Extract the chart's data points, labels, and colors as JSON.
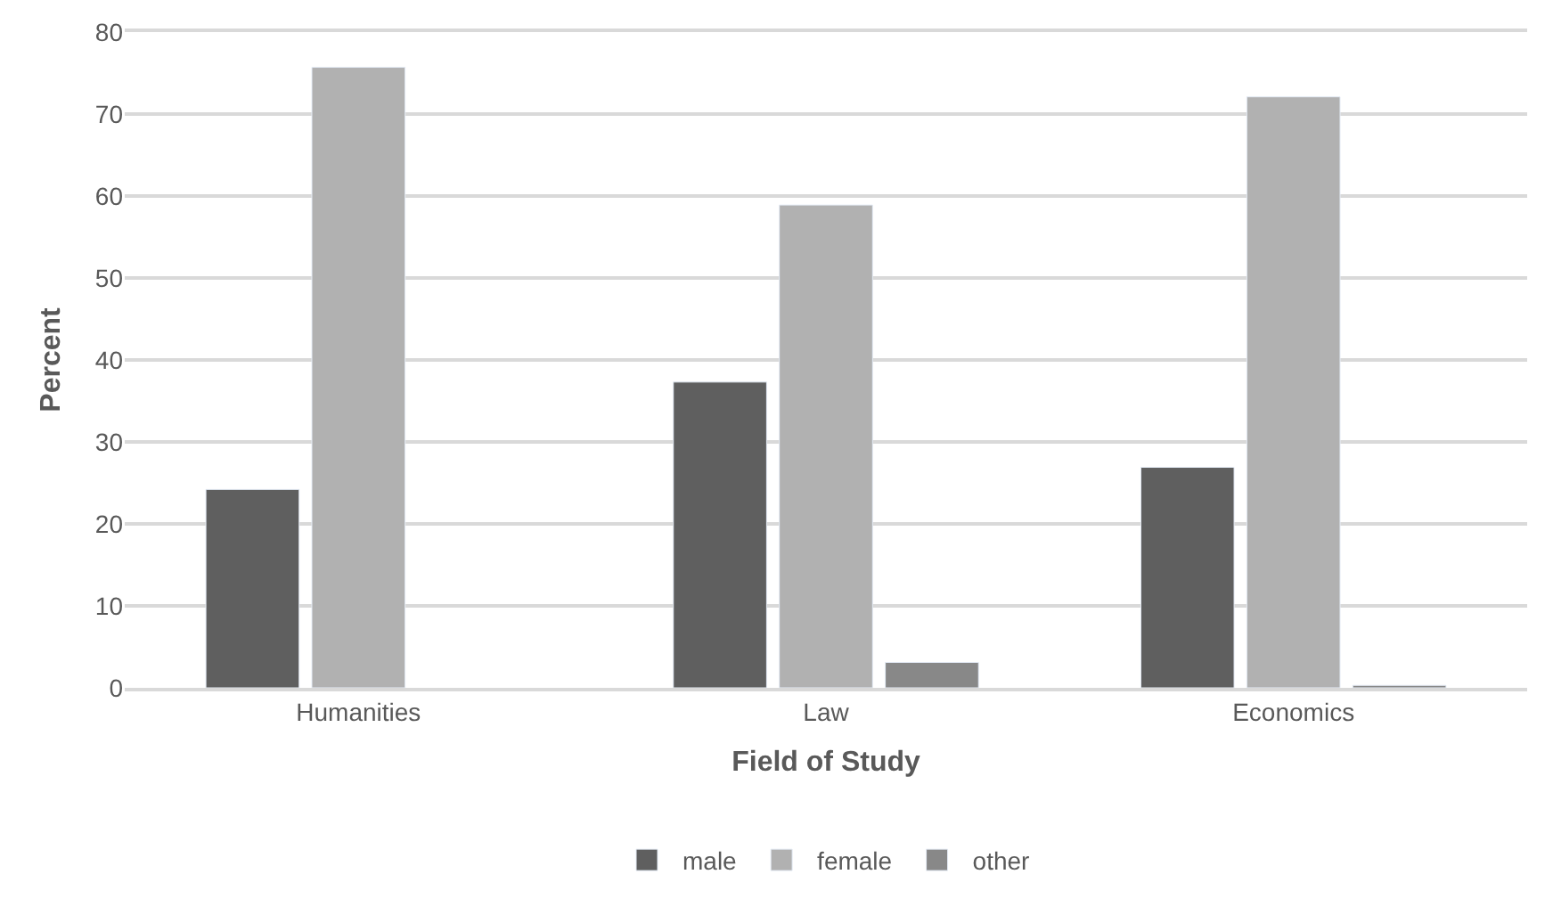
{
  "chart_data": {
    "type": "bar",
    "xlabel": "Field of Study",
    "ylabel": "Percent",
    "categories": [
      "Humanities",
      "Law",
      "Economics"
    ],
    "series": [
      {
        "name": "male",
        "color": "#5f5f5f",
        "values": [
          24.2,
          37.3,
          26.9
        ]
      },
      {
        "name": "female",
        "color": "#b1b1b1",
        "values": [
          75.7,
          58.9,
          72.1
        ]
      },
      {
        "name": "other",
        "color": "#888888",
        "values": [
          null,
          3.1,
          0.3
        ]
      }
    ],
    "ylim": [
      0,
      80
    ],
    "yticks": [
      0,
      10,
      20,
      30,
      40,
      50,
      60,
      70,
      80
    ],
    "grid": "y",
    "legend": "bottom"
  }
}
